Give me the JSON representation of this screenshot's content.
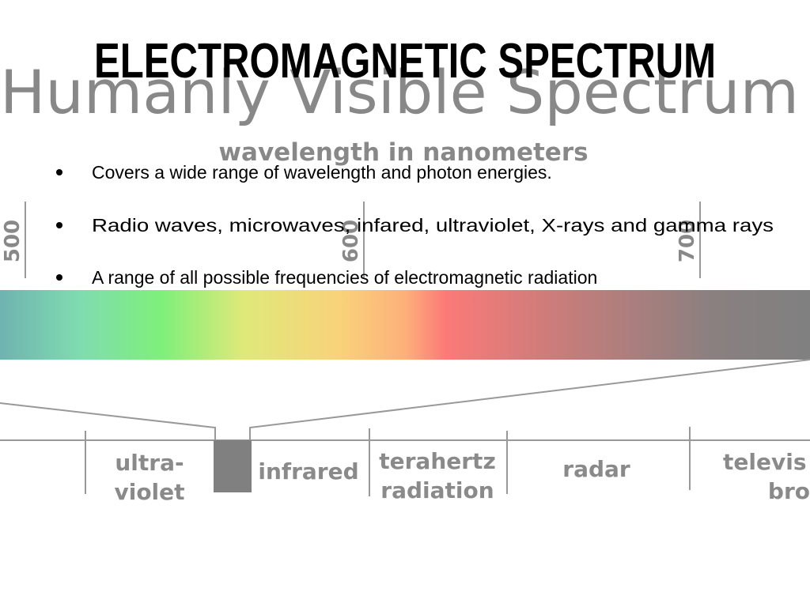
{
  "title": "ELECTROMAGNETIC SPECTRUM",
  "background": {
    "heading": "Humanly Visible Spectrum",
    "axis_label": "wavelength in nanometers",
    "ticks": [
      "500",
      "600",
      "700"
    ],
    "bands": [
      [
        "ultra-",
        "violet"
      ],
      [
        "infrared"
      ],
      [
        "terahertz",
        "radiation"
      ],
      [
        "radar"
      ],
      [
        "televis",
        "bro"
      ]
    ]
  },
  "bullets": [
    "Covers a wide range of wavelength and photon energies.",
    "Radio waves, microwaves, infared, ultraviolet, X-rays and gamma rays",
    "A range of all possible frequencies of electromagnetic radiation"
  ]
}
